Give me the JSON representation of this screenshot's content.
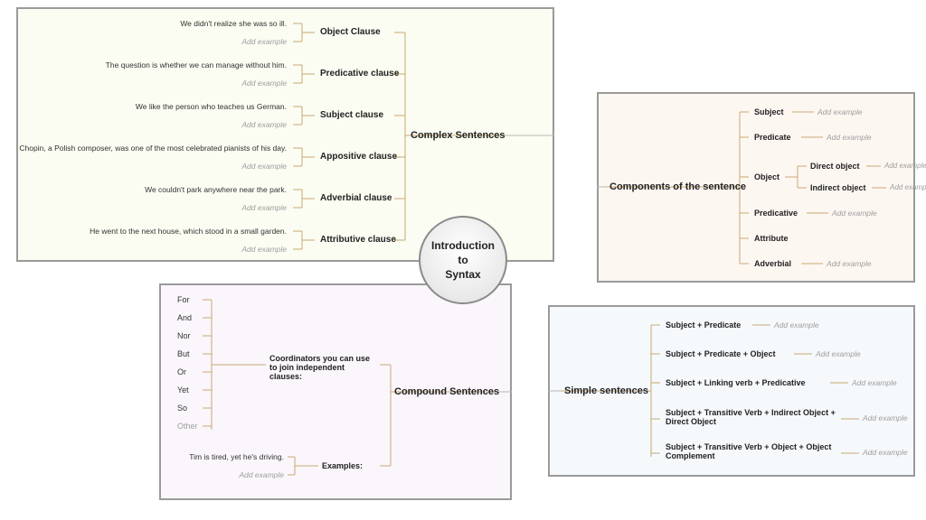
{
  "center_title": "Introduction\nto\nSyntax",
  "add_label": "Add example",
  "colors": {
    "branch": "#c9a874",
    "panel_border": "#9a9a9a",
    "bg_complex": "#fbfcf2",
    "bg_components": "#fdf7f2",
    "bg_compound": "#faf6fc",
    "bg_simple": "#f5f9fc",
    "text": "#222222",
    "muted": "#9e9e9e"
  },
  "complex": {
    "title": "Complex Sentences",
    "clauses": [
      {
        "name": "Object Clause",
        "example": "We didn't realize she was so ill."
      },
      {
        "name": "Predicative clause",
        "example": "The question is whether we can manage without him."
      },
      {
        "name": "Subject clause",
        "example": "We like the person who teaches us German."
      },
      {
        "name": "Appositive clause",
        "example": "Chopin, a Polish composer, was one of the most celebrated pianists of his day."
      },
      {
        "name": "Adverbial clause",
        "example": "We couldn't park anywhere near the park."
      },
      {
        "name": "Attributive clause",
        "example": "He went to the next house, which stood in a small garden."
      }
    ]
  },
  "components": {
    "title": "Components of the sentence",
    "items": [
      "Subject",
      "Predicate",
      "Object",
      "Predicative",
      "Attribute",
      "Adverbial"
    ],
    "object_sub": [
      "Direct object",
      "Indirect object"
    ]
  },
  "compound": {
    "title": "Compound Sentences",
    "coord_label": "Coordinators you can use to join independent clauses:",
    "coordinators": [
      "For",
      "And",
      "Nor",
      "But",
      "Or",
      "Yet",
      "So",
      "Other"
    ],
    "examples_label": "Examples:",
    "example": "Tim is tired, yet he's driving."
  },
  "simple": {
    "title": "Simple sentences",
    "patterns": [
      "Subject + Predicate",
      "Subject + Predicate + Object",
      "Subject + Linking verb + Predicative",
      "Subject + Transitive Verb + Indirect Object + Direct Object",
      "Subject + Transitive Verb + Object + Object Complement"
    ]
  }
}
